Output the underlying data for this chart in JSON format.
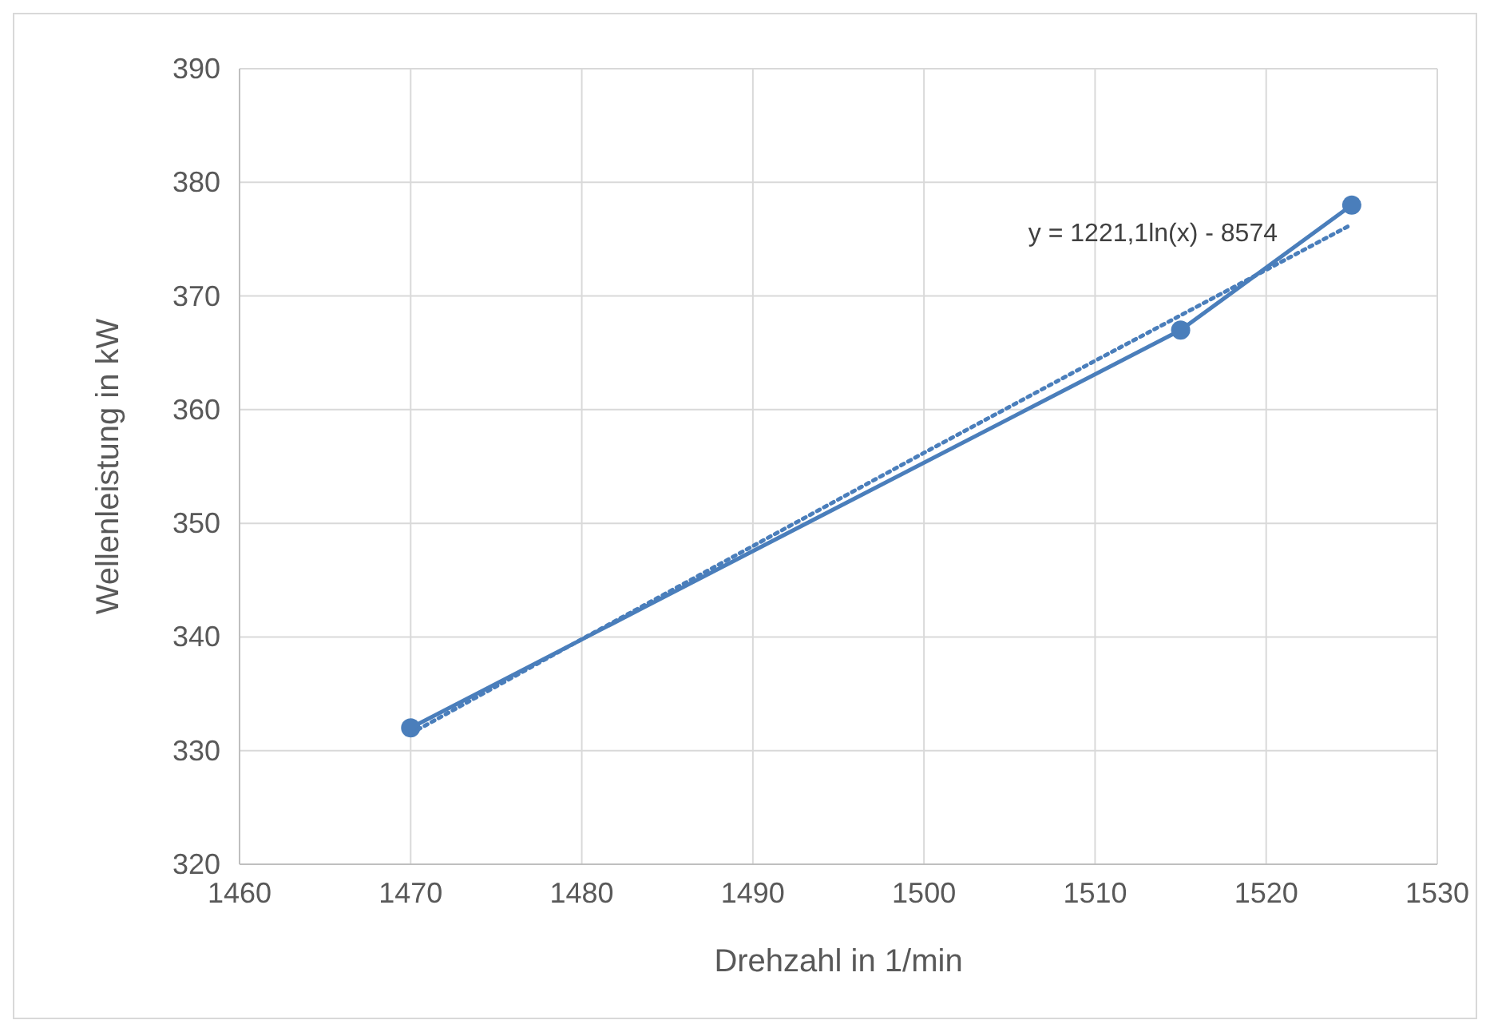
{
  "chart_data": {
    "type": "line",
    "xlabel": "Drehzahl in 1/min",
    "ylabel": "Wellenleistung in kW",
    "xlim": [
      1460,
      1530
    ],
    "xticks": [
      1460,
      1470,
      1480,
      1490,
      1500,
      1510,
      1520,
      1530
    ],
    "ylim": [
      320,
      390
    ],
    "yticks": [
      320,
      330,
      340,
      350,
      360,
      370,
      380,
      390
    ],
    "grid": true,
    "series": [
      {
        "color": "#4a7ebb",
        "x": [
          1470,
          1515,
          1525
        ],
        "values": [
          332,
          367,
          378
        ],
        "marker": "circle",
        "line_style": "solid"
      },
      {
        "type": "line",
        "color": "#4a7ebb",
        "x": [
          1470,
          1480,
          1490,
          1500,
          1510,
          1520,
          1525
        ],
        "values": [
          331.5,
          339.8,
          348.0,
          356.2,
          364.3,
          372.3,
          376.3
        ],
        "marker": "none",
        "line_style": "dotted"
      }
    ],
    "annotations": [
      "y = 1221,1ln(x) - 8574"
    ]
  }
}
